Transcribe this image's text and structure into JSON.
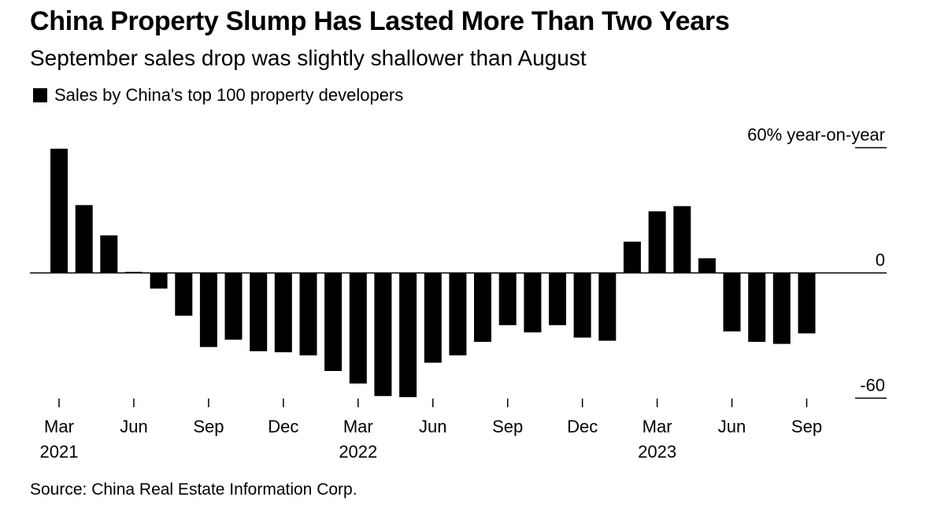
{
  "header": {
    "title": "China Property Slump Has Lasted More Than Two Years",
    "subtitle": "September sales drop was slightly shallower than August"
  },
  "legend": {
    "label": "Sales by China's top 100 property developers"
  },
  "footer": {
    "source": "Source: China Real Estate Information Corp."
  },
  "chart_data": {
    "type": "bar",
    "title": "China Property Slump Has Lasted More Than Two Years",
    "subtitle": "September sales drop was slightly shallower than August",
    "ylabel": "",
    "ylim": [
      -60,
      60
    ],
    "grid": false,
    "legend_position": "top-left",
    "color": "#000000",
    "categories": [
      "Mar 2021",
      "Apr 2021",
      "May 2021",
      "Jun 2021",
      "Jul 2021",
      "Aug 2021",
      "Sep 2021",
      "Oct 2021",
      "Nov 2021",
      "Dec 2021",
      "Jan 2022",
      "Feb 2022",
      "Mar 2022",
      "Apr 2022",
      "May 2022",
      "Jun 2022",
      "Jul 2022",
      "Aug 2022",
      "Sep 2022",
      "Oct 2022",
      "Nov 2022",
      "Dec 2022",
      "Jan 2023",
      "Feb 2023",
      "Mar 2023",
      "Apr 2023",
      "May 2023",
      "Jun 2023",
      "Jul 2023",
      "Aug 2023",
      "Sep 2023"
    ],
    "series": [
      {
        "name": "Sales by China's top 100 property developers",
        "values": [
          59.5,
          32.5,
          18,
          0.5,
          -7.5,
          -20.5,
          -35.5,
          -32,
          -37.5,
          -38,
          -39.5,
          -47,
          -53,
          -59,
          -59.5,
          -43,
          -39.5,
          -33,
          -25,
          -28.5,
          -25,
          -31,
          -32.5,
          15,
          29.5,
          32,
          7,
          -28,
          -33,
          -34,
          -29
        ]
      }
    ],
    "y_ticks": [
      {
        "value": 60,
        "label": "60% year-on-year"
      },
      {
        "value": 0,
        "label": "0"
      },
      {
        "value": -60,
        "label": "-60"
      }
    ],
    "x_ticks": [
      {
        "index": 0,
        "label": "Mar",
        "year": "2021"
      },
      {
        "index": 3,
        "label": "Jun",
        "year": ""
      },
      {
        "index": 6,
        "label": "Sep",
        "year": ""
      },
      {
        "index": 9,
        "label": "Dec",
        "year": ""
      },
      {
        "index": 12,
        "label": "Mar",
        "year": "2022"
      },
      {
        "index": 15,
        "label": "Jun",
        "year": ""
      },
      {
        "index": 18,
        "label": "Sep",
        "year": ""
      },
      {
        "index": 21,
        "label": "Dec",
        "year": ""
      },
      {
        "index": 24,
        "label": "Mar",
        "year": "2023"
      },
      {
        "index": 27,
        "label": "Jun",
        "year": ""
      },
      {
        "index": 30,
        "label": "Sep",
        "year": ""
      }
    ]
  }
}
